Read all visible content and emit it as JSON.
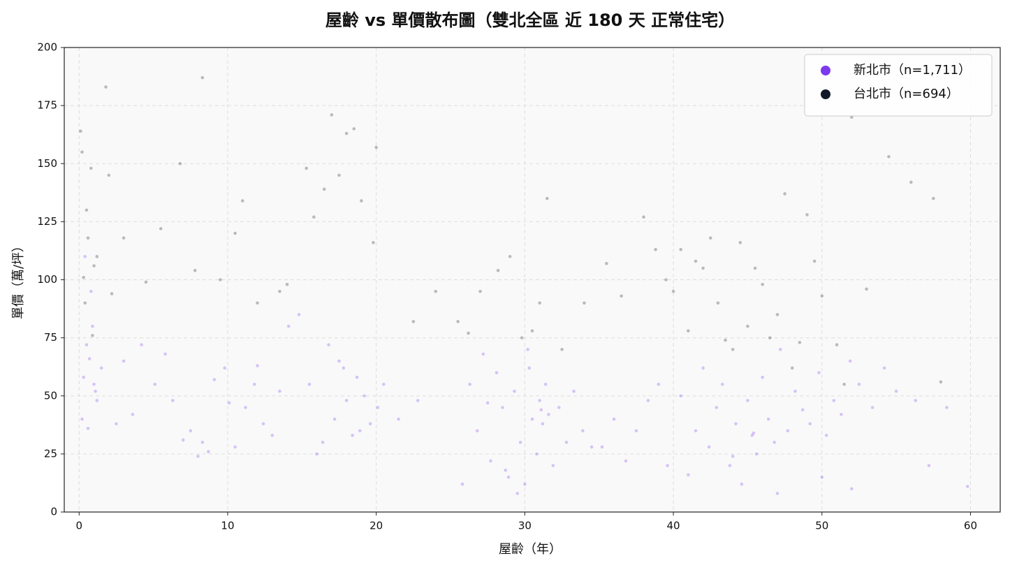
{
  "chart_data": {
    "type": "scatter",
    "title": "屋齡 vs 單價散布圖（雙北全區 近 180 天 正常住宅）",
    "x_label": "屋齡（年）",
    "y_label": "單價（萬/坪）",
    "xlim": [
      -1,
      62
    ],
    "ylim": [
      0,
      200
    ],
    "xticks": [
      0,
      10,
      20,
      30,
      40,
      50,
      60
    ],
    "yticks": [
      0,
      25,
      50,
      75,
      100,
      125,
      150,
      175,
      200
    ],
    "grid": true,
    "legend": "upper right",
    "series": [
      {
        "name": "新北市（n=1,711）",
        "color": "#7c3aed",
        "x": [
          0.3,
          0.5,
          0.6,
          0.8,
          1.0,
          1.2,
          0.4,
          0.7,
          1.5,
          0.2,
          0.9,
          1.1,
          2.5,
          3.0,
          4.2,
          5.1,
          6.3,
          7.5,
          8.0,
          8.3,
          9.1,
          9.8,
          10.5,
          11.2,
          12.0,
          12.4,
          13.5,
          14.1,
          14.8,
          3.6,
          5.8,
          7.0,
          8.7,
          10.1,
          11.8,
          13.0,
          15.5,
          16.0,
          16.8,
          17.2,
          17.5,
          18.0,
          18.4,
          18.7,
          19.2,
          19.6,
          20.1,
          20.5,
          16.4,
          17.8,
          18.9,
          21.5,
          22.8,
          25.8,
          26.3,
          26.8,
          27.2,
          27.7,
          28.1,
          28.5,
          28.9,
          29.3,
          29.7,
          30.0,
          30.2,
          30.5,
          30.8,
          31.0,
          31.2,
          31.4,
          31.6,
          31.9,
          32.3,
          32.8,
          33.3,
          33.9,
          34.5,
          29.5,
          30.3,
          31.1,
          28.7,
          27.5,
          35.2,
          36.0,
          36.8,
          37.5,
          38.3,
          39.0,
          39.6,
          40.5,
          41.0,
          41.5,
          42.0,
          42.4,
          42.9,
          43.3,
          43.8,
          44.2,
          44.6,
          45.0,
          45.3,
          45.6,
          46.0,
          46.4,
          46.8,
          47.2,
          47.7,
          48.2,
          48.7,
          49.2,
          49.8,
          50.3,
          50.8,
          51.3,
          51.9,
          44.0,
          45.4,
          47.0,
          52.5,
          53.4,
          54.2,
          55.0,
          56.3,
          57.2,
          58.4,
          59.8,
          50.0,
          52.0
        ],
        "values": [
          58,
          72,
          36,
          95,
          55,
          48,
          110,
          66,
          62,
          40,
          80,
          52,
          38,
          65,
          72,
          55,
          48,
          35,
          24,
          30,
          57,
          62,
          28,
          45,
          63,
          38,
          52,
          80,
          85,
          42,
          68,
          31,
          26,
          47,
          55,
          33,
          55,
          25,
          72,
          40,
          65,
          48,
          33,
          58,
          50,
          38,
          45,
          55,
          30,
          62,
          35,
          40,
          48,
          12,
          55,
          35,
          68,
          22,
          60,
          45,
          15,
          52,
          30,
          12,
          70,
          40,
          25,
          48,
          38,
          55,
          42,
          20,
          45,
          30,
          52,
          35,
          28,
          8,
          62,
          44,
          18,
          47,
          28,
          40,
          22,
          35,
          48,
          55,
          20,
          50,
          16,
          35,
          62,
          28,
          45,
          55,
          20,
          38,
          12,
          48,
          33,
          25,
          58,
          40,
          30,
          70,
          35,
          52,
          44,
          38,
          60,
          33,
          48,
          42,
          65,
          24,
          34,
          8,
          55,
          45,
          62,
          52,
          48,
          20,
          45,
          11,
          15,
          10
        ]
      },
      {
        "name": "台北市（n=694）",
        "color": "#111827",
        "x": [
          0.1,
          0.2,
          0.3,
          0.5,
          0.6,
          0.8,
          1.0,
          1.2,
          0.4,
          0.9,
          1.8,
          2.0,
          2.2,
          3.0,
          4.5,
          5.5,
          6.8,
          7.8,
          8.3,
          9.5,
          10.5,
          11.0,
          12.0,
          13.5,
          14.0,
          15.3,
          15.8,
          16.5,
          17.0,
          17.5,
          18.0,
          18.5,
          19.0,
          19.8,
          20.0,
          22.5,
          24.0,
          25.5,
          26.2,
          27.0,
          28.2,
          29.0,
          29.8,
          30.5,
          31.0,
          31.5,
          32.5,
          34.0,
          35.5,
          36.5,
          38.0,
          38.8,
          39.5,
          40.0,
          40.5,
          41.0,
          41.5,
          42.0,
          42.5,
          43.0,
          43.5,
          44.0,
          44.5,
          45.0,
          45.5,
          46.0,
          46.5,
          47.0,
          47.5,
          48.0,
          48.5,
          49.0,
          49.5,
          50.0,
          51.0,
          51.5,
          52.0,
          53.0,
          54.5,
          56.0,
          57.5,
          58.0
        ],
        "values": [
          164,
          155,
          101,
          130,
          118,
          148,
          106,
          110,
          90,
          76,
          183,
          145,
          94,
          118,
          99,
          122,
          150,
          104,
          187,
          100,
          120,
          134,
          90,
          95,
          98,
          148,
          127,
          139,
          171,
          145,
          163,
          165,
          134,
          116,
          157,
          82,
          95,
          82,
          77,
          95,
          104,
          110,
          75,
          78,
          90,
          135,
          70,
          90,
          107,
          93,
          127,
          113,
          100,
          95,
          113,
          78,
          108,
          105,
          118,
          90,
          74,
          70,
          116,
          80,
          105,
          98,
          75,
          85,
          137,
          62,
          73,
          128,
          108,
          93,
          72,
          55,
          170,
          96,
          153,
          142,
          135,
          56
        ]
      }
    ]
  }
}
